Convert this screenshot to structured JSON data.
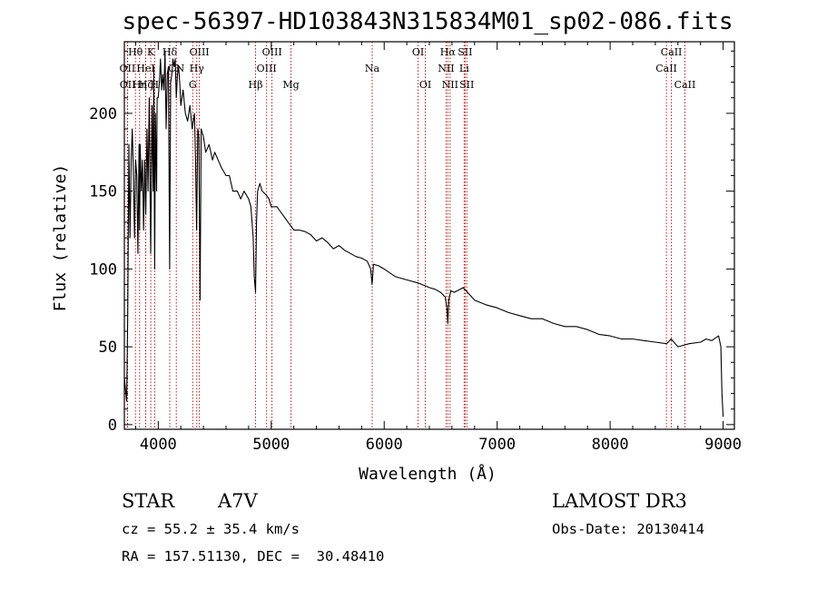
{
  "chart_data": {
    "type": "line",
    "title": "spec-56397-HD103843N315834M01_sp02-086.fits",
    "xlabel": "Wavelength (Å)",
    "ylabel": "Flux (relative)",
    "xlim": [
      3700,
      9100
    ],
    "ylim": [
      -3,
      246
    ],
    "xticks": [
      4000,
      5000,
      6000,
      7000,
      8000,
      9000
    ],
    "yticks": [
      0,
      50,
      100,
      150,
      200
    ],
    "series": [
      {
        "name": "flux",
        "x": [
          3700,
          3720,
          3730,
          3740,
          3750,
          3760,
          3770,
          3780,
          3790,
          3800,
          3810,
          3820,
          3830,
          3835,
          3840,
          3850,
          3860,
          3870,
          3880,
          3890,
          3900,
          3910,
          3920,
          3933,
          3945,
          3955,
          3960,
          3968,
          3975,
          3985,
          3990,
          4000,
          4010,
          4020,
          4030,
          4040,
          4050,
          4060,
          4070,
          4080,
          4090,
          4101,
          4110,
          4120,
          4130,
          4140,
          4150,
          4160,
          4170,
          4180,
          4190,
          4200,
          4220,
          4240,
          4260,
          4280,
          4300,
          4320,
          4330,
          4340,
          4350,
          4360,
          4370,
          4380,
          4400,
          4420,
          4450,
          4480,
          4500,
          4530,
          4560,
          4600,
          4630,
          4660,
          4700,
          4730,
          4760,
          4800,
          4820,
          4840,
          4850,
          4861,
          4870,
          4880,
          4900,
          4920,
          4950,
          4980,
          5000,
          5050,
          5100,
          5150,
          5200,
          5250,
          5300,
          5350,
          5400,
          5450,
          5500,
          5550,
          5600,
          5650,
          5700,
          5750,
          5800,
          5850,
          5880,
          5893,
          5905,
          5950,
          6000,
          6100,
          6200,
          6300,
          6400,
          6450,
          6500,
          6540,
          6555,
          6563,
          6572,
          6590,
          6620,
          6700,
          6800,
          6900,
          7000,
          7100,
          7200,
          7300,
          7400,
          7500,
          7600,
          7700,
          7800,
          7900,
          8000,
          8100,
          8200,
          8300,
          8400,
          8500,
          8540,
          8600,
          8700,
          8800,
          8850,
          8900,
          8940,
          8960,
          8980,
          8990,
          9000
        ],
        "values": [
          30,
          15,
          70,
          180,
          120,
          170,
          190,
          160,
          120,
          170,
          160,
          110,
          180,
          125,
          180,
          150,
          170,
          125,
          170,
          135,
          190,
          150,
          210,
          110,
          205,
          150,
          230,
          100,
          200,
          150,
          210,
          210,
          220,
          235,
          215,
          225,
          215,
          240,
          190,
          225,
          230,
          100,
          220,
          225,
          235,
          230,
          235,
          210,
          225,
          230,
          220,
          205,
          215,
          200,
          195,
          205,
          190,
          200,
          170,
          125,
          190,
          185,
          80,
          190,
          185,
          175,
          180,
          170,
          175,
          170,
          165,
          160,
          160,
          150,
          150,
          145,
          150,
          145,
          140,
          120,
          95,
          85,
          130,
          150,
          155,
          150,
          148,
          145,
          140,
          140,
          135,
          130,
          125,
          125,
          124,
          122,
          118,
          120,
          117,
          113,
          115,
          112,
          110,
          108,
          107,
          105,
          100,
          90,
          103,
          102,
          100,
          95,
          93,
          91,
          88,
          87,
          85,
          82,
          75,
          65,
          80,
          86,
          85,
          88,
          80,
          77,
          75,
          72,
          70,
          68,
          68,
          65,
          63,
          63,
          61,
          58,
          57,
          55,
          55,
          54,
          53,
          52,
          55,
          50,
          52,
          53,
          55,
          54,
          56,
          57,
          50,
          20,
          5
        ]
      }
    ],
    "lines": [
      {
        "label": "Hθ",
        "x": 3798,
        "row": 1
      },
      {
        "label": "OII",
        "x": 3727,
        "row": 2
      },
      {
        "label": "OII",
        "x": 3729,
        "row": 3
      },
      {
        "label": "Hη",
        "x": 3835,
        "row": 3
      },
      {
        "label": "HeI",
        "x": 3889,
        "row": 2
      },
      {
        "label": "Hζ",
        "x": 3889,
        "row": 3
      },
      {
        "label": "K",
        "x": 3934,
        "row": 1
      },
      {
        "label": "H",
        "x": 3968,
        "row": 3
      },
      {
        "label": "Hδ",
        "x": 4102,
        "row": 1
      },
      {
        "label": "CN",
        "x": 4160,
        "row": 2
      },
      {
        "label": "G",
        "x": 4305,
        "row": 3
      },
      {
        "label": "OIII",
        "x": 4364,
        "row": 1
      },
      {
        "label": "Hγ",
        "x": 4341,
        "row": 2
      },
      {
        "label": "Hβ",
        "x": 4861,
        "row": 3
      },
      {
        "label": "OIII",
        "x": 4959,
        "row": 2
      },
      {
        "label": "OIII",
        "x": 5007,
        "row": 1
      },
      {
        "label": "Mg",
        "x": 5175,
        "row": 3
      },
      {
        "label": "Na",
        "x": 5894,
        "row": 2
      },
      {
        "label": "OI",
        "x": 6300,
        "row": 1
      },
      {
        "label": "OI",
        "x": 6364,
        "row": 3
      },
      {
        "label": "NII",
        "x": 6548,
        "row": 2
      },
      {
        "label": "Hα",
        "x": 6563,
        "row": 1
      },
      {
        "label": "NII",
        "x": 6583,
        "row": 3
      },
      {
        "label": "Li",
        "x": 6708,
        "row": 2
      },
      {
        "label": "SII",
        "x": 6716,
        "row": 1
      },
      {
        "label": "SII",
        "x": 6731,
        "row": 3
      },
      {
        "label": "CaII",
        "x": 8498,
        "row": 2
      },
      {
        "label": "CaII",
        "x": 8542,
        "row": 1
      },
      {
        "label": "CaII",
        "x": 8662,
        "row": 3
      }
    ]
  },
  "info": {
    "class": "STAR",
    "subclass": "A7V",
    "survey": "LAMOST DR3",
    "cz": "cz = 55.2 ± 35.4 km/s",
    "obs_date": "Obs-Date: 20130414",
    "coords": "RA = 157.51130, DEC =  30.48410"
  },
  "colors": {
    "line_marker": "#c00000",
    "spectrum": "#000000",
    "axis": "#000000"
  }
}
